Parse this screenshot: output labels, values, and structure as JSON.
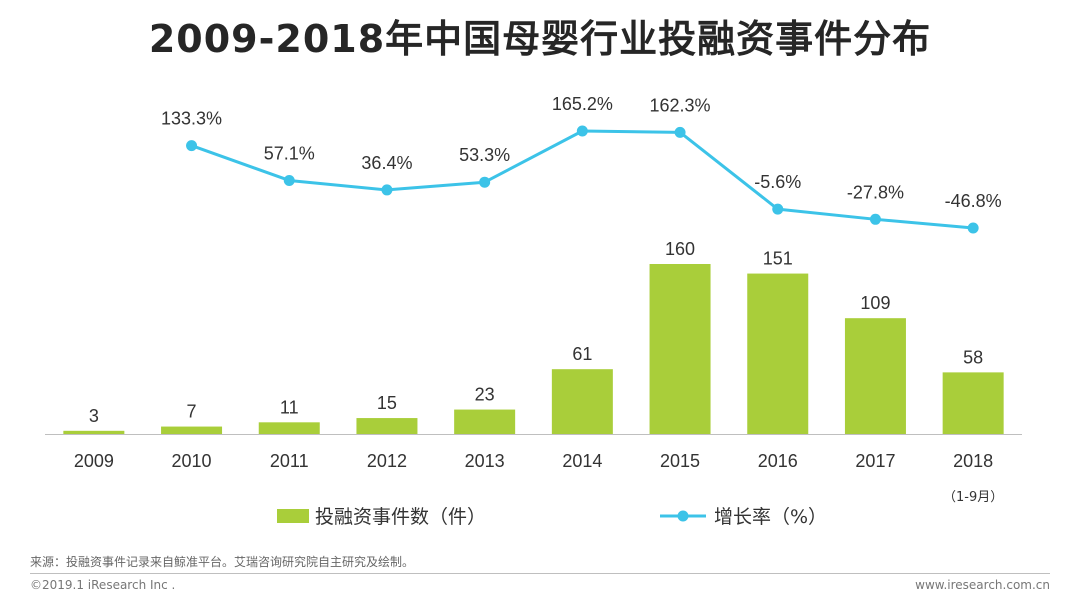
{
  "chart_data": {
    "type": "bar+line",
    "title": "2009-2018年中国母婴行业投融资事件分布",
    "categories": [
      "2009",
      "2010",
      "2011",
      "2012",
      "2013",
      "2014",
      "2015",
      "2016",
      "2017",
      "2018"
    ],
    "category_note": {
      "index": 9,
      "text": "（1-9月）"
    },
    "series": [
      {
        "name": "投融资事件数（件）",
        "kind": "bar",
        "color": "#a9ce3a",
        "values": [
          3,
          7,
          11,
          15,
          23,
          61,
          160,
          151,
          109,
          58
        ],
        "labels": [
          "3",
          "7",
          "11",
          "15",
          "23",
          "61",
          "160",
          "151",
          "109",
          "58"
        ]
      },
      {
        "name": "增长率（%）",
        "kind": "line",
        "color": "#3cc3e8",
        "values": [
          null,
          133.3,
          57.1,
          36.4,
          53.3,
          165.2,
          162.3,
          -5.6,
          -27.8,
          -46.8
        ],
        "labels": [
          "",
          "133.3%",
          "57.1%",
          "36.4%",
          "53.3%",
          "165.2%",
          "162.3%",
          "-5.6%",
          "-27.8%",
          "-46.8%"
        ]
      }
    ],
    "legend_position": "bottom-center"
  },
  "footer": {
    "source": "来源：投融资事件记录来自鲸准平台。艾瑞咨询研究院自主研究及绘制。",
    "copyright": "©2019.1 iResearch Inc .",
    "website": "www.iresearch.com.cn"
  }
}
